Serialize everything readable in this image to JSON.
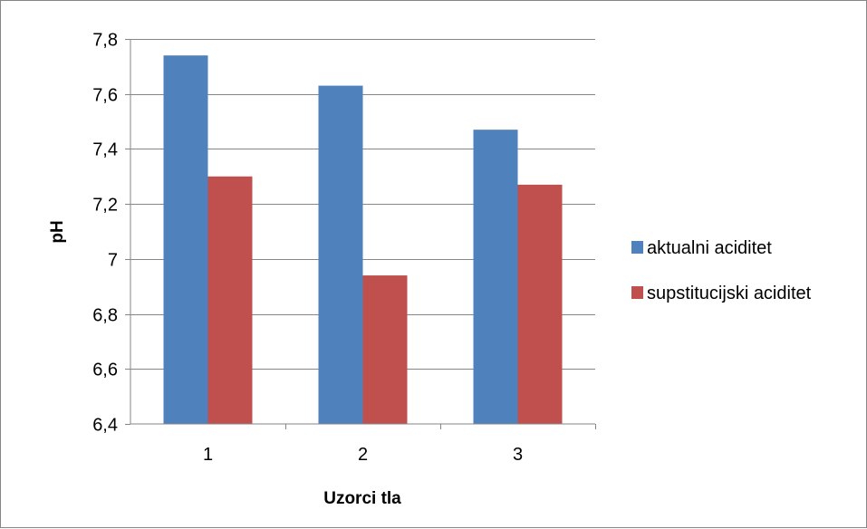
{
  "chart_data": {
    "type": "bar",
    "categories": [
      "1",
      "2",
      "3"
    ],
    "series": [
      {
        "name": "aktualni aciditet",
        "values": [
          7.74,
          7.63,
          7.47
        ],
        "color": "#4f81bd"
      },
      {
        "name": "supstitucijski aciditet",
        "values": [
          7.3,
          6.94,
          7.27
        ],
        "color": "#c0504d"
      }
    ],
    "xlabel": "Uzorci tla",
    "ylabel": "pH",
    "ylim": [
      6.4,
      7.8
    ],
    "yticks": [
      6.4,
      6.6,
      6.8,
      7.0,
      7.2,
      7.4,
      7.6,
      7.8
    ],
    "ytick_labels": [
      "6,4",
      "6,6",
      "6,8",
      "7",
      "7,2",
      "7,4",
      "7,6",
      "7,8"
    ],
    "grid": true,
    "legend_position": "right"
  }
}
